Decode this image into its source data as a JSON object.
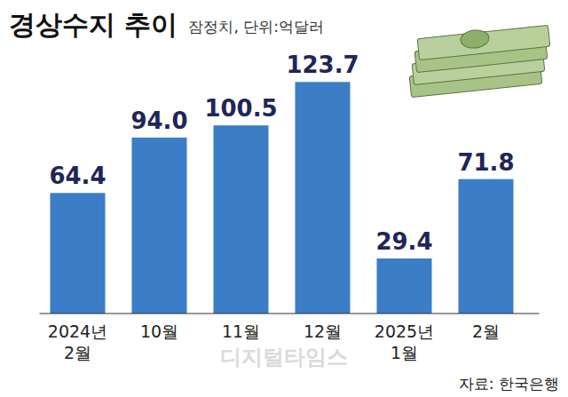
{
  "chart_data": {
    "type": "bar",
    "title": "경상수지 추이",
    "subtitle": "잠정치, 단위:억달러",
    "categories": [
      "2024년 2월",
      "10월",
      "11월",
      "12월",
      "2025년 1월",
      "2월"
    ],
    "values": [
      64.4,
      94.0,
      100.5,
      123.7,
      29.4,
      71.8
    ],
    "value_labels": [
      "64.4",
      "94.0",
      "100.5",
      "123.7",
      "29.4",
      "71.8"
    ],
    "color": "#3b7dc6",
    "ylim": [
      0,
      130
    ],
    "yticks": [],
    "tick_labels": "x",
    "data_labels": true,
    "grid": false,
    "source": "자료: 한국은행",
    "watermark": "디지털타임스"
  }
}
